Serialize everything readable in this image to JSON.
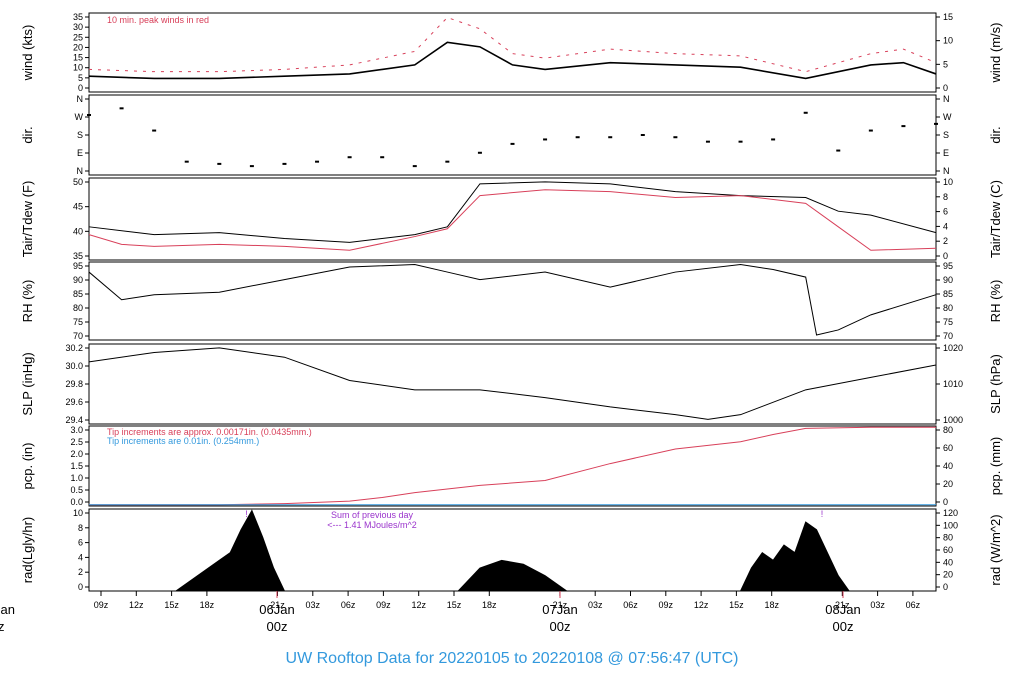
{
  "footer": "UW Rooftop Data for 20220105  to  20220108 @ 07:56:47  (UTC)",
  "colors": {
    "black": "#000000",
    "red": "#d8405a",
    "blue": "#3399dd",
    "purple": "#9a33cc",
    "footer_blue": "#3399dd"
  },
  "time_axis": {
    "hour_ticks": [
      "09z",
      "12z",
      "15z",
      "18z",
      "21z",
      "03z",
      "06z",
      "09z",
      "12z",
      "15z",
      "18z",
      "21z",
      "03z",
      "06z",
      "09z",
      "12z",
      "15z",
      "18z",
      "21z",
      "03z",
      "06z"
    ],
    "day_labels": [
      {
        "date": "06Jan",
        "time": "00z"
      },
      {
        "date": "07Jan",
        "time": "00z"
      },
      {
        "date": "08Jan",
        "time": "00z"
      }
    ],
    "cut_day_label": {
      "date": "Jan",
      "time": "z"
    }
  },
  "chart_data": [
    {
      "type": "line",
      "id": "wind",
      "ylabel_left": "wind (kts)",
      "ylabel_right": "wind (m/s)",
      "yticks_left": [
        "0",
        "5",
        "10",
        "15",
        "20",
        "25",
        "30",
        "35"
      ],
      "yticks_right": [
        "0",
        "5",
        "10",
        "15"
      ],
      "ylim": [
        0,
        35
      ],
      "annotation": "10 min. peak winds in red",
      "series": [
        {
          "name": "wind",
          "color": "#000000",
          "x": [
            0,
            6,
            12,
            18,
            24,
            27,
            30,
            33,
            36,
            39,
            42,
            48,
            54,
            60,
            66,
            72,
            75,
            78
          ],
          "y": [
            7,
            6,
            6,
            7,
            8,
            10,
            12,
            22,
            20,
            12,
            10,
            13,
            12,
            11,
            6,
            12,
            13,
            8
          ]
        },
        {
          "name": "10 min. peak winds",
          "color": "#d8405a",
          "x": [
            0,
            6,
            12,
            18,
            24,
            27,
            30,
            33,
            36,
            39,
            42,
            48,
            54,
            60,
            66,
            72,
            75,
            78
          ],
          "y": [
            10,
            9,
            9,
            10,
            12,
            15,
            18,
            33,
            28,
            17,
            15,
            19,
            17,
            16,
            9,
            17,
            19,
            13
          ]
        }
      ]
    },
    {
      "type": "scatter",
      "id": "dir",
      "ylabel_left": "dir.",
      "ylabel_right": "dir.",
      "yticks_left": [
        "N",
        "E",
        "S",
        "W",
        "N"
      ],
      "yticks_right": [
        "N",
        "E",
        "S",
        "W",
        "N"
      ],
      "ylim": [
        0,
        360
      ],
      "series": [
        {
          "name": "direction",
          "color": "#000000",
          "x": [
            0,
            3,
            6,
            9,
            12,
            15,
            18,
            21,
            24,
            27,
            30,
            33,
            36,
            39,
            42,
            45,
            48,
            51,
            54,
            57,
            60,
            63,
            66,
            69,
            72,
            75,
            78
          ],
          "y": [
            270,
            300,
            200,
            60,
            50,
            40,
            50,
            60,
            80,
            80,
            40,
            60,
            100,
            140,
            160,
            170,
            170,
            180,
            170,
            150,
            150,
            160,
            280,
            110,
            200,
            220,
            230
          ]
        }
      ]
    },
    {
      "type": "line",
      "id": "temp",
      "ylabel_left": "Tair/Tdew (F)",
      "ylabel_right": "Tair/Tdew (C)",
      "yticks_left": [
        "35",
        "40",
        "45",
        "50"
      ],
      "yticks_right": [
        "0",
        "2",
        "4",
        "6",
        "8",
        "10"
      ],
      "ylim": [
        31.5,
        52.5
      ],
      "series": [
        {
          "name": "Tair",
          "color": "#000000",
          "x": [
            0,
            6,
            12,
            18,
            24,
            30,
            33,
            36,
            42,
            48,
            54,
            60,
            66,
            69,
            72,
            78
          ],
          "y": [
            40,
            38,
            38.5,
            37,
            36,
            38,
            40,
            51,
            51.5,
            51,
            49,
            48,
            47.5,
            44,
            43,
            38.5
          ]
        },
        {
          "name": "Tdew",
          "color": "#d8405a",
          "x": [
            0,
            3,
            6,
            12,
            18,
            24,
            30,
            33,
            36,
            42,
            48,
            54,
            60,
            66,
            69,
            72,
            78
          ],
          "y": [
            38,
            35.5,
            35,
            35.5,
            35,
            34,
            37.5,
            39.5,
            48,
            49.5,
            49,
            47.5,
            48,
            46,
            40,
            34,
            34.5
          ]
        }
      ]
    },
    {
      "type": "line",
      "id": "rh",
      "ylabel_left": "RH (%)",
      "ylabel_right": "RH (%)",
      "yticks_left": [
        "70",
        "75",
        "80",
        "85",
        "90",
        "95"
      ],
      "yticks_right": [
        "70",
        "75",
        "80",
        "85",
        "90",
        "95"
      ],
      "ylim": [
        66,
        97
      ],
      "series": [
        {
          "name": "RH",
          "color": "#000000",
          "x": [
            0,
            3,
            6,
            12,
            18,
            24,
            30,
            33,
            36,
            42,
            48,
            54,
            60,
            63,
            66,
            67,
            69,
            72,
            78
          ],
          "y": [
            93,
            82,
            84,
            85,
            90,
            95,
            96,
            93,
            90,
            93,
            87,
            93,
            96,
            94,
            91,
            68,
            70,
            76,
            84
          ]
        }
      ]
    },
    {
      "type": "line",
      "id": "slp",
      "ylabel_left": "SLP (inHg)",
      "ylabel_right": "SLP (hPa)",
      "yticks_left": [
        "29.4",
        "29.6",
        "29.8",
        "30.0",
        "30.2"
      ],
      "yticks_right": [
        "1000",
        "1010",
        "1020"
      ],
      "ylim": [
        29.3,
        30.33
      ],
      "series": [
        {
          "name": "SLP",
          "color": "#000000",
          "x": [
            0,
            6,
            12,
            18,
            24,
            30,
            36,
            42,
            48,
            54,
            57,
            60,
            66,
            72,
            78
          ],
          "y": [
            30.1,
            30.22,
            30.28,
            30.16,
            29.86,
            29.74,
            29.74,
            29.64,
            29.52,
            29.42,
            29.36,
            29.42,
            29.74,
            29.9,
            30.06
          ]
        }
      ]
    },
    {
      "type": "line",
      "id": "pcp",
      "ylabel_left": "pcp. (in)",
      "ylabel_right": "pcp. (mm)",
      "yticks_left": [
        "0.0",
        "0.5",
        "1.0",
        "1.5",
        "2.0",
        "2.5",
        "3.0"
      ],
      "yticks_right": [
        "0",
        "20",
        "40",
        "60",
        "80"
      ],
      "ylim": [
        -0.05,
        3.25
      ],
      "annotations": [
        "Tip increments are approx. 0.00171in. (0.0435mm.)",
        "Tip increments are 0.01in. (0.254mm.)"
      ],
      "series": [
        {
          "name": "pcp approx",
          "color": "#d8405a",
          "x": [
            0,
            12,
            18,
            24,
            27,
            30,
            36,
            42,
            48,
            54,
            60,
            63,
            66,
            72,
            78
          ],
          "y": [
            0,
            0,
            0.05,
            0.15,
            0.3,
            0.5,
            0.8,
            1.0,
            1.7,
            2.3,
            2.6,
            2.9,
            3.15,
            3.2,
            3.2
          ]
        },
        {
          "name": "pcp tipping",
          "color": "#3399dd",
          "x": [
            0,
            78
          ],
          "y": [
            0,
            0
          ]
        }
      ]
    },
    {
      "type": "area",
      "id": "rad",
      "ylabel_left": "rad(Lgly/hr)",
      "ylabel_right": "rad (W/m^2)",
      "yticks_left": [
        "0",
        "2",
        "4",
        "6",
        "8",
        "10"
      ],
      "yticks_right": [
        "0",
        "20",
        "40",
        "60",
        "80",
        "100",
        "120"
      ],
      "ylim": [
        0,
        10.7
      ],
      "annotation": [
        "Sum of previous day",
        "<--- 1.41 MJoules/m^2"
      ],
      "markers": [
        {
          "x": 14.5,
          "label": "!"
        },
        {
          "x": 67.5,
          "label": "!"
        }
      ],
      "series": [
        {
          "name": "radiation",
          "color": "#000000",
          "x": [
            8,
            10,
            12,
            13,
            14,
            15,
            16,
            17,
            18,
            34,
            36,
            38,
            40,
            42,
            44,
            60,
            61,
            62,
            63,
            64,
            65,
            66,
            67,
            68,
            69,
            70
          ],
          "y": [
            0,
            2,
            4,
            5,
            8,
            10.5,
            7,
            3,
            0,
            0,
            3,
            4,
            3.5,
            2,
            0,
            0,
            3,
            5,
            4,
            6,
            5,
            9,
            8,
            5,
            2,
            0
          ]
        }
      ]
    }
  ]
}
